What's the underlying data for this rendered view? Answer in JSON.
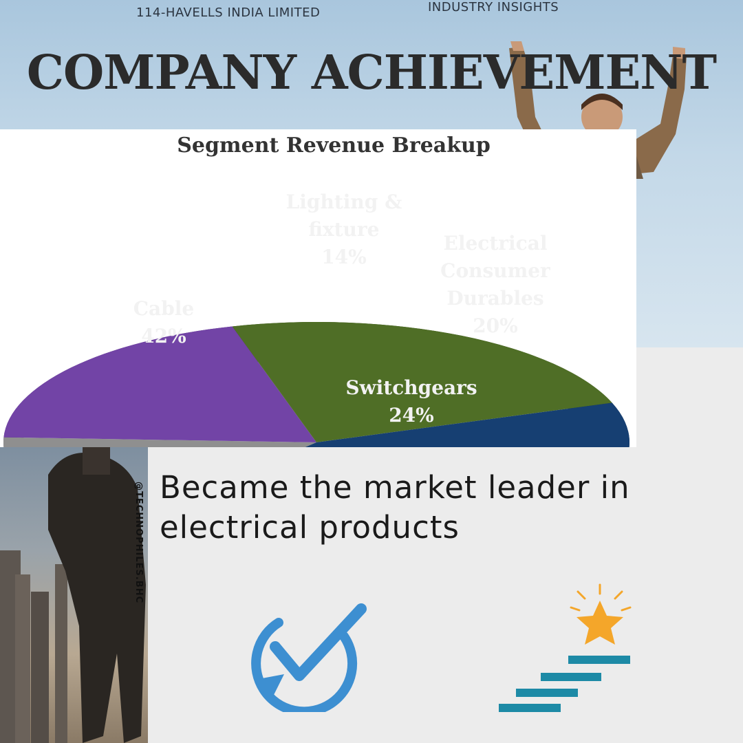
{
  "header": {
    "company": "114-HAVELLS INDIA LIMITED",
    "section": "INDUSTRY INSIGHTS",
    "title": "COMPANY ACHIEVEMENT"
  },
  "chart_data": {
    "type": "pie",
    "title": "Segment Revenue Breakup",
    "slices": [
      {
        "label": "Lighting &\nfixture",
        "value": 14,
        "display": "14%",
        "color": "#8f8f8f"
      },
      {
        "label": "Electrical\nConsumer\nDurables",
        "value": 20,
        "display": "20%",
        "color": "#7244a6"
      },
      {
        "label": "Switchgears",
        "value": 24,
        "display": "24%",
        "color": "#4f6e26"
      },
      {
        "label": "Cable",
        "value": 42,
        "display": "42%",
        "color": "#163f72"
      }
    ]
  },
  "statement": "Became the market leader in electrical products",
  "watermark": "@TECHNOPHILES.BHC",
  "icons": {
    "left": "check-refresh-icon",
    "right": "star-stairs-icon",
    "check_color": "#3d8fd1",
    "star_color": "#f4a62a",
    "stairs_color": "#1d8aa6"
  }
}
